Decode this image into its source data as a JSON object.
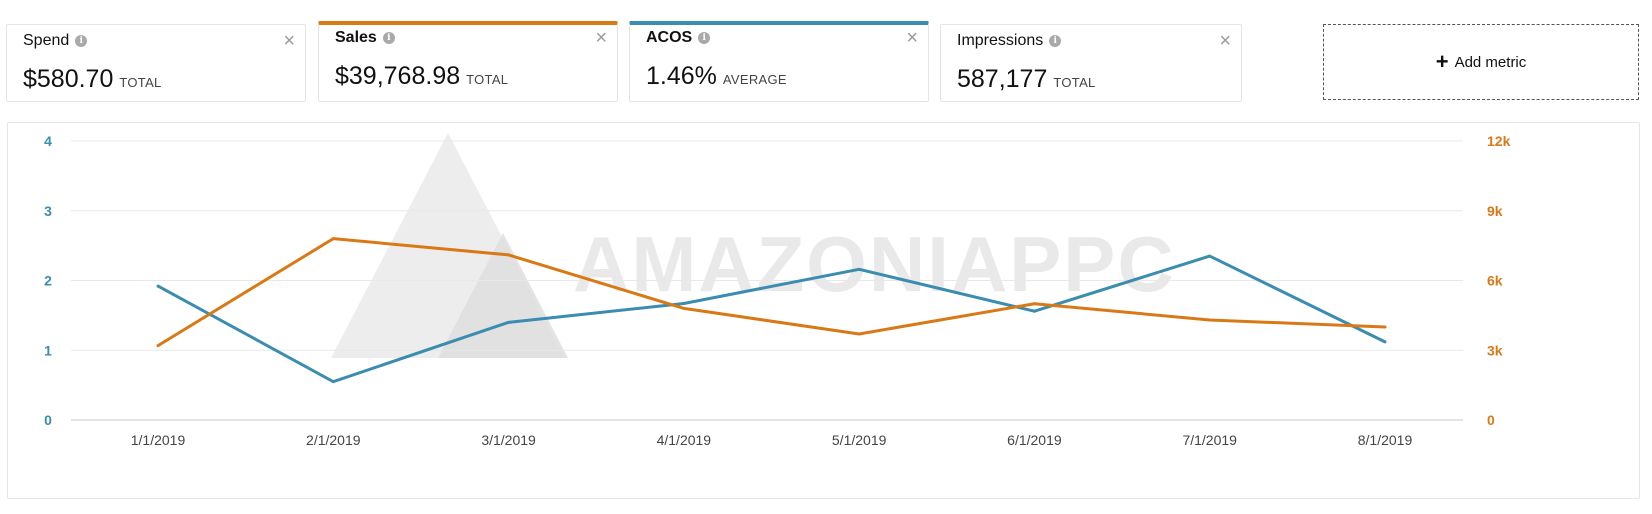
{
  "metrics": [
    {
      "name": "Spend",
      "value": "$580.70",
      "aggregate": "TOTAL",
      "selected": false
    },
    {
      "name": "Sales",
      "value": "$39,768.98",
      "aggregate": "TOTAL",
      "selected": true,
      "color": "#d97916"
    },
    {
      "name": "ACOS",
      "value": "1.46%",
      "aggregate": "AVERAGE",
      "selected": true,
      "color": "#3a8cb0"
    },
    {
      "name": "Impressions",
      "value": "587,177",
      "aggregate": "TOTAL",
      "selected": false
    }
  ],
  "icons": {
    "info": "info-icon",
    "close": "close-icon",
    "add": "plus-icon"
  },
  "glyphs": {
    "info": "i",
    "close": "×",
    "plus": "+"
  },
  "add_metric_label": "Add metric",
  "watermark": "AMAZONIAPPC",
  "chart_data": {
    "type": "line",
    "categories": [
      "1/1/2019",
      "2/1/2019",
      "3/1/2019",
      "4/1/2019",
      "5/1/2019",
      "6/1/2019",
      "7/1/2019",
      "8/1/2019"
    ],
    "series": [
      {
        "name": "ACOS",
        "axis": "left",
        "color": "#3a8cb0",
        "values": [
          1.92,
          0.55,
          1.4,
          1.67,
          2.16,
          1.56,
          2.35,
          1.12
        ]
      },
      {
        "name": "Sales",
        "axis": "right",
        "color": "#d97916",
        "values": [
          3200,
          7800,
          7100,
          4800,
          3700,
          5000,
          4300,
          4000
        ]
      }
    ],
    "y_left": {
      "ylim": [
        0,
        4
      ],
      "ticks": [
        "0",
        "1",
        "2",
        "3",
        "4"
      ]
    },
    "y_right": {
      "ylim": [
        0,
        12000
      ],
      "ticks": [
        "0",
        "3k",
        "6k",
        "9k",
        "12k"
      ]
    },
    "grid": true
  }
}
